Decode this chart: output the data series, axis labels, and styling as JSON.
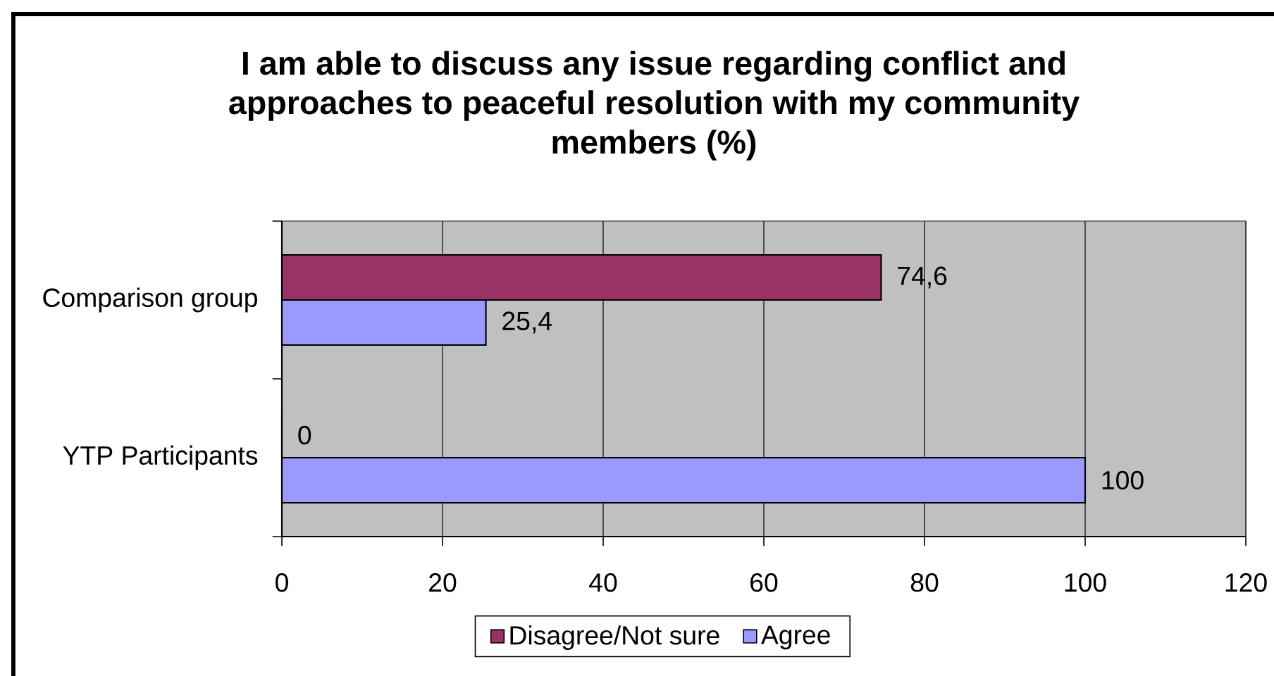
{
  "chart_data": {
    "type": "bar",
    "orientation": "horizontal",
    "title": "I am able to discuss any issue regarding conflict and approaches to peaceful resolution with my community members (%)",
    "categories": [
      "Comparison group",
      "YTP Participants"
    ],
    "series": [
      {
        "name": "Disagree/Not sure",
        "color": "#993366",
        "values": [
          74.6,
          0
        ],
        "value_labels": [
          "74,6",
          "0"
        ]
      },
      {
        "name": "Agree",
        "color": "#9999ff",
        "values": [
          25.4,
          100
        ],
        "value_labels": [
          "25,4",
          "100"
        ]
      }
    ],
    "xlim": [
      0,
      120
    ],
    "xticks": [
      0,
      20,
      40,
      60,
      80,
      100,
      120
    ],
    "grid": "x",
    "legend": "bottom"
  }
}
